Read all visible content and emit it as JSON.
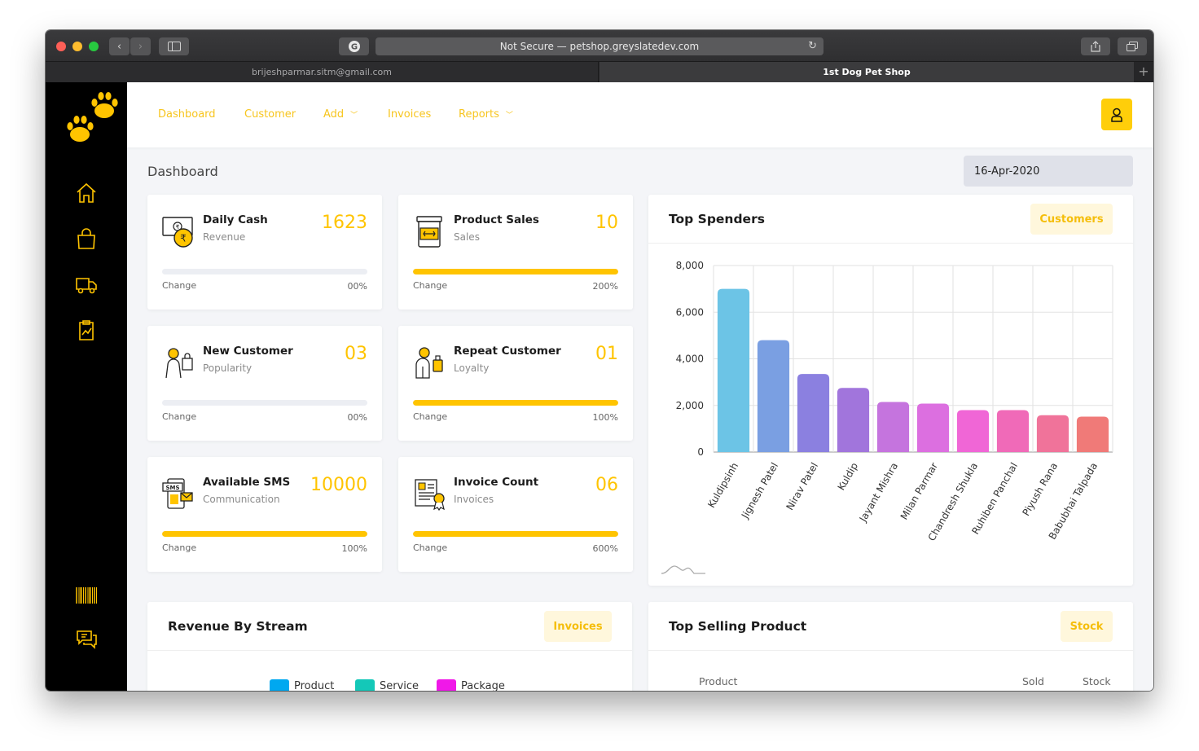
{
  "browser": {
    "address": "Not Secure — petshop.greyslatedev.com",
    "tabs": [
      "brijeshparmar.sitm@gmail.com",
      "1st Dog Pet Shop"
    ]
  },
  "nav": {
    "items": [
      {
        "label": "Dashboard"
      },
      {
        "label": "Customer"
      },
      {
        "label": "Add"
      },
      {
        "label": "Invoices"
      },
      {
        "label": "Reports"
      }
    ]
  },
  "page": {
    "title": "Dashboard",
    "date": "16-Apr-2020"
  },
  "stats": [
    {
      "title": "Daily Cash",
      "sub": "Revenue",
      "value": "1623",
      "change_label": "Change",
      "change": "00%",
      "progress": 0
    },
    {
      "title": "Product Sales",
      "sub": "Sales",
      "value": "10",
      "change_label": "Change",
      "change": "200%",
      "progress": 1
    },
    {
      "title": "New Customer",
      "sub": "Popularity",
      "value": "03",
      "change_label": "Change",
      "change": "00%",
      "progress": 0
    },
    {
      "title": "Repeat Customer",
      "sub": "Loyalty",
      "value": "01",
      "change_label": "Change",
      "change": "100%",
      "progress": 1
    },
    {
      "title": "Available SMS",
      "sub": "Communication",
      "value": "10000",
      "change_label": "Change",
      "change": "100%",
      "progress": 1
    },
    {
      "title": "Invoice Count",
      "sub": "Invoices",
      "value": "06",
      "change_label": "Change",
      "change": "600%",
      "progress": 1
    }
  ],
  "top_spenders": {
    "title": "Top Spenders",
    "button": "Customers"
  },
  "chart_data": {
    "type": "bar",
    "categories": [
      "Kuldipsinh",
      "Jignesh Patel",
      "Nirav Patel",
      "Kuldip",
      "Jayant Mishra",
      "Milan Parmar",
      "Chandresh Shukla",
      "Ruhiben Panchal",
      "Piyush Rana",
      "Babubhai Talpada"
    ],
    "values": [
      7000,
      4800,
      3350,
      2750,
      2150,
      2080,
      1800,
      1800,
      1580,
      1520
    ],
    "colors": [
      "#6cc4e6",
      "#7a9fe2",
      "#8b80e0",
      "#a175dc",
      "#c574de",
      "#dc6fe0",
      "#f066d6",
      "#f06ab8",
      "#f0739a",
      "#f07a78"
    ],
    "ylim": [
      0,
      8000
    ],
    "yticks": [
      "0",
      "2,000",
      "4,000",
      "6,000",
      "8,000"
    ],
    "grid": true,
    "xlabel": "",
    "ylabel": ""
  },
  "revenue_stream": {
    "title": "Revenue By Stream",
    "button": "Invoices",
    "legend": [
      {
        "name": "Product",
        "color": "#00a8f0"
      },
      {
        "name": "Service",
        "color": "#14c8b8"
      },
      {
        "name": "Package",
        "color": "#f018e8"
      }
    ]
  },
  "top_selling": {
    "title": "Top Selling Product",
    "button": "Stock",
    "columns": [
      "Product",
      "Sold",
      "Stock"
    ]
  },
  "colors": {
    "accent": "#ffc400",
    "sidebar": "#000000"
  }
}
